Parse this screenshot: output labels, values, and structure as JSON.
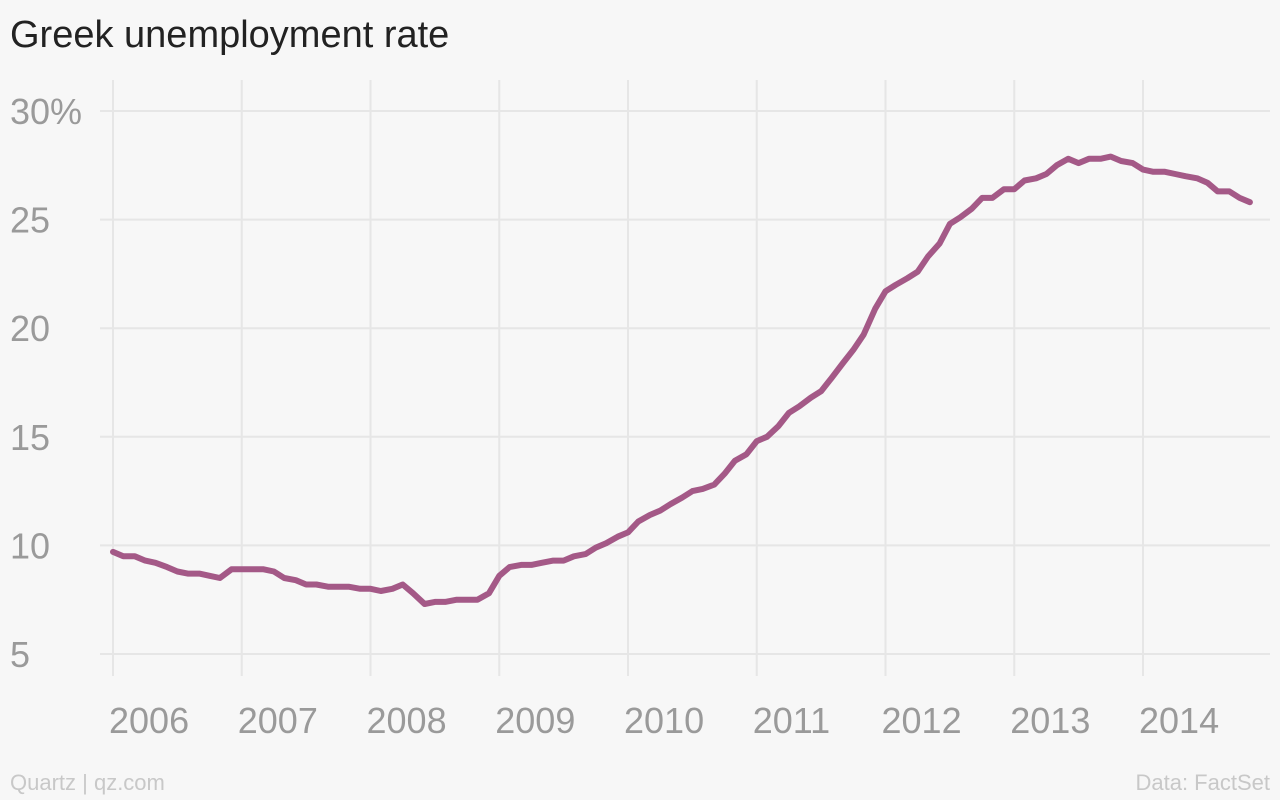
{
  "title": "Greek unemployment rate",
  "footer": {
    "source_left": "Quartz | qz.com",
    "source_right": "Data: FactSet"
  },
  "colors": {
    "line": "#a45987",
    "grid": "#e6e6e6",
    "tick": "#9a9a9a",
    "background": "#f7f7f7"
  },
  "chart_data": {
    "type": "line",
    "title": "Greek unemployment rate",
    "xlabel": "",
    "ylabel": "",
    "ylim": [
      5,
      30
    ],
    "xlim": [
      2006,
      2014.8
    ],
    "grid": true,
    "y_ticks": [
      5,
      10,
      15,
      20,
      25,
      30
    ],
    "y_tick_labels": [
      "5",
      "10",
      "15",
      "20",
      "25",
      "30%"
    ],
    "x_ticks": [
      2006,
      2007,
      2008,
      2009,
      2010,
      2011,
      2012,
      2013,
      2014
    ],
    "x_tick_labels": [
      "2006",
      "2007",
      "2008",
      "2009",
      "2010",
      "2011",
      "2012",
      "2013",
      "2014"
    ],
    "series": [
      {
        "values": [
          [
            2006.0,
            9.7
          ],
          [
            2006.08,
            9.5
          ],
          [
            2006.17,
            9.5
          ],
          [
            2006.25,
            9.3
          ],
          [
            2006.33,
            9.2
          ],
          [
            2006.42,
            9.0
          ],
          [
            2006.5,
            8.8
          ],
          [
            2006.58,
            8.7
          ],
          [
            2006.67,
            8.7
          ],
          [
            2006.75,
            8.6
          ],
          [
            2006.83,
            8.5
          ],
          [
            2006.92,
            8.9
          ],
          [
            2007.0,
            8.9
          ],
          [
            2007.08,
            8.9
          ],
          [
            2007.17,
            8.9
          ],
          [
            2007.25,
            8.8
          ],
          [
            2007.33,
            8.5
          ],
          [
            2007.42,
            8.4
          ],
          [
            2007.5,
            8.2
          ],
          [
            2007.58,
            8.2
          ],
          [
            2007.67,
            8.1
          ],
          [
            2007.75,
            8.1
          ],
          [
            2007.83,
            8.1
          ],
          [
            2007.92,
            8.0
          ],
          [
            2008.0,
            8.0
          ],
          [
            2008.08,
            7.9
          ],
          [
            2008.17,
            8.0
          ],
          [
            2008.25,
            8.2
          ],
          [
            2008.33,
            7.8
          ],
          [
            2008.42,
            7.3
          ],
          [
            2008.5,
            7.4
          ],
          [
            2008.58,
            7.4
          ],
          [
            2008.67,
            7.5
          ],
          [
            2008.75,
            7.5
          ],
          [
            2008.83,
            7.5
          ],
          [
            2008.92,
            7.8
          ],
          [
            2009.0,
            8.6
          ],
          [
            2009.08,
            9.0
          ],
          [
            2009.17,
            9.1
          ],
          [
            2009.25,
            9.1
          ],
          [
            2009.33,
            9.2
          ],
          [
            2009.42,
            9.3
          ],
          [
            2009.5,
            9.3
          ],
          [
            2009.58,
            9.5
          ],
          [
            2009.67,
            9.6
          ],
          [
            2009.75,
            9.9
          ],
          [
            2009.83,
            10.1
          ],
          [
            2009.92,
            10.4
          ],
          [
            2010.0,
            10.6
          ],
          [
            2010.08,
            11.1
          ],
          [
            2010.17,
            11.4
          ],
          [
            2010.25,
            11.6
          ],
          [
            2010.33,
            11.9
          ],
          [
            2010.42,
            12.2
          ],
          [
            2010.5,
            12.5
          ],
          [
            2010.58,
            12.6
          ],
          [
            2010.67,
            12.8
          ],
          [
            2010.75,
            13.3
          ],
          [
            2010.83,
            13.9
          ],
          [
            2010.92,
            14.2
          ],
          [
            2011.0,
            14.8
          ],
          [
            2011.08,
            15.0
          ],
          [
            2011.17,
            15.5
          ],
          [
            2011.25,
            16.1
          ],
          [
            2011.33,
            16.4
          ],
          [
            2011.42,
            16.8
          ],
          [
            2011.5,
            17.1
          ],
          [
            2011.58,
            17.7
          ],
          [
            2011.67,
            18.4
          ],
          [
            2011.75,
            19.0
          ],
          [
            2011.83,
            19.7
          ],
          [
            2011.92,
            20.9
          ],
          [
            2012.0,
            21.7
          ],
          [
            2012.08,
            22.0
          ],
          [
            2012.17,
            22.3
          ],
          [
            2012.25,
            22.6
          ],
          [
            2012.33,
            23.3
          ],
          [
            2012.42,
            23.9
          ],
          [
            2012.5,
            24.8
          ],
          [
            2012.58,
            25.1
          ],
          [
            2012.67,
            25.5
          ],
          [
            2012.75,
            26.0
          ],
          [
            2012.83,
            26.0
          ],
          [
            2012.92,
            26.4
          ],
          [
            2013.0,
            26.4
          ],
          [
            2013.08,
            26.8
          ],
          [
            2013.17,
            26.9
          ],
          [
            2013.25,
            27.1
          ],
          [
            2013.33,
            27.5
          ],
          [
            2013.42,
            27.8
          ],
          [
            2013.5,
            27.6
          ],
          [
            2013.58,
            27.8
          ],
          [
            2013.67,
            27.8
          ],
          [
            2013.75,
            27.9
          ],
          [
            2013.83,
            27.7
          ],
          [
            2013.92,
            27.6
          ],
          [
            2014.0,
            27.3
          ],
          [
            2014.08,
            27.2
          ],
          [
            2014.17,
            27.2
          ],
          [
            2014.25,
            27.1
          ],
          [
            2014.33,
            27.0
          ],
          [
            2014.42,
            26.9
          ],
          [
            2014.5,
            26.7
          ],
          [
            2014.58,
            26.3
          ],
          [
            2014.67,
            26.3
          ],
          [
            2014.75,
            26.0
          ],
          [
            2014.83,
            25.8
          ]
        ]
      }
    ]
  }
}
